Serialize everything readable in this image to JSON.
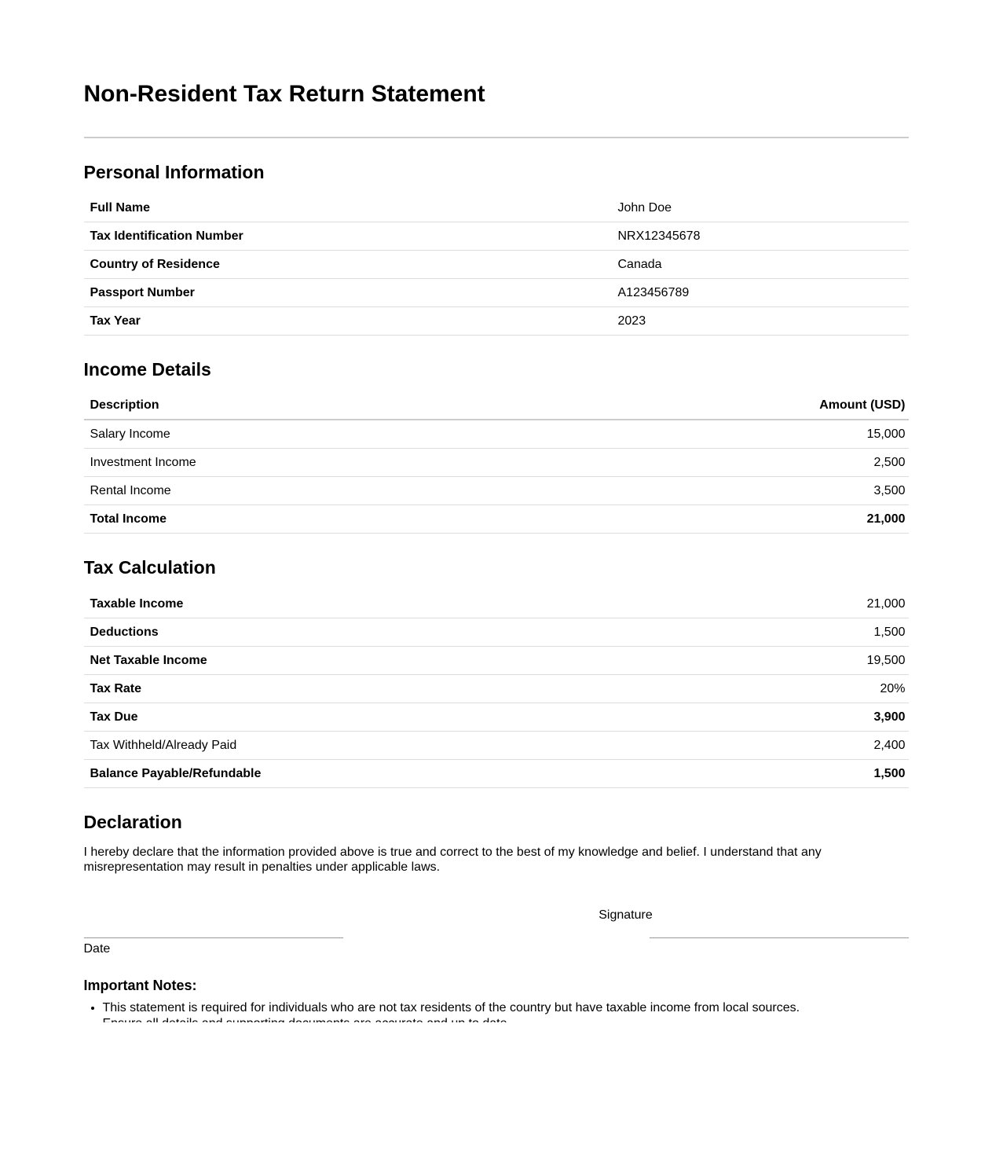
{
  "title": "Non-Resident Tax Return Statement",
  "personal_information": {
    "heading": "Personal Information",
    "rows": [
      {
        "label": "Full Name",
        "value": "John Doe"
      },
      {
        "label": "Tax Identification Number",
        "value": "NRX12345678"
      },
      {
        "label": "Country of Residence",
        "value": "Canada"
      },
      {
        "label": "Passport Number",
        "value": "A123456789"
      },
      {
        "label": "Tax Year",
        "value": "2023"
      }
    ]
  },
  "income_details": {
    "heading": "Income Details",
    "columns": {
      "description": "Description",
      "amount": "Amount (USD)"
    },
    "rows": [
      {
        "label": "Salary Income",
        "value": "15,000"
      },
      {
        "label": "Investment Income",
        "value": "2,500"
      },
      {
        "label": "Rental Income",
        "value": "3,500"
      },
      {
        "label": "Total Income",
        "value": "21,000"
      }
    ]
  },
  "tax_calculation": {
    "heading": "Tax Calculation",
    "rows": [
      {
        "label": "Taxable Income",
        "value": "21,000"
      },
      {
        "label": "Deductions",
        "value": "1,500"
      },
      {
        "label": "Net Taxable Income",
        "value": "19,500"
      },
      {
        "label": "Tax Rate",
        "value": "20%"
      },
      {
        "label": "Tax Due",
        "value": "3,900"
      },
      {
        "label": "Tax Withheld/Already Paid",
        "value": "2,400"
      },
      {
        "label": "Balance Payable/Refundable",
        "value": "1,500"
      }
    ]
  },
  "declaration": {
    "heading": "Declaration",
    "text": "I hereby declare that the information provided above is true and correct to the best of my knowledge and belief. I understand that any misrepresentation may result in penalties under applicable laws."
  },
  "signature_block": {
    "signature_label": "Signature",
    "date_label": "Date"
  },
  "notes": {
    "heading": "Important Notes:",
    "items": [
      "This statement is required for individuals who are not tax residents of the country but have taxable income from local sources.",
      "Ensure all details and supporting documents are accurate and up to date."
    ]
  }
}
